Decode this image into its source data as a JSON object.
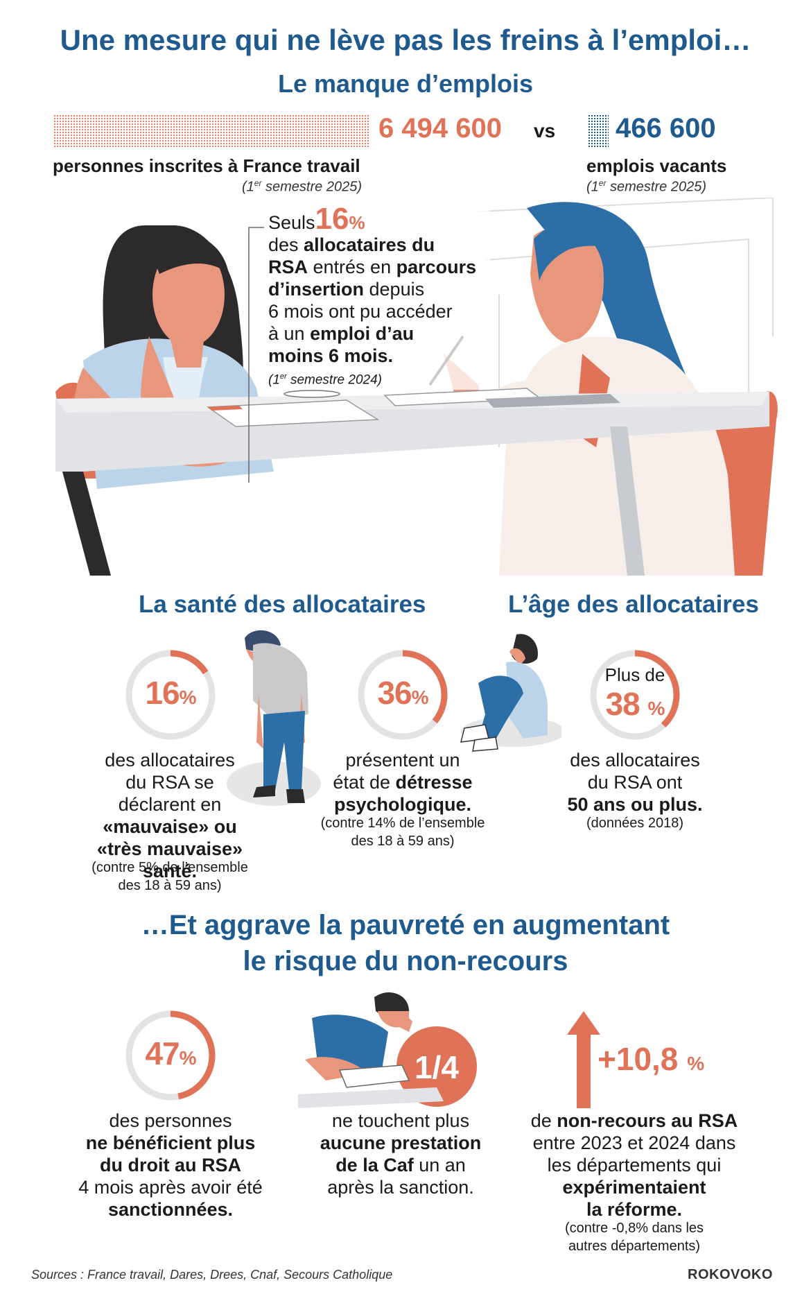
{
  "title": "Une mesure qui ne lève pas les freins à l’emploi…",
  "subtitle_jobs": "Le manque d’emplois",
  "comparison": {
    "left_value": "6 494 600",
    "vs": "vs",
    "right_value": "466 600",
    "left_label": "personnes inscrites à France travail",
    "left_note": [
      "(1",
      "er",
      " semestre 2025)"
    ],
    "right_label": "emplois vacants",
    "right_note": [
      "(1",
      "er",
      " semestre 2025)"
    ]
  },
  "insertion": {
    "lead": "Seuls",
    "value": "16",
    "unit": "%",
    "lines": [
      [
        "des ",
        "allocataires du"
      ],
      [
        "RSA",
        " entrés en ",
        "parcours"
      ],
      [
        "d’insertion",
        " depuis"
      ],
      [
        "6 mois ont pu accéder"
      ],
      [
        "à un ",
        "emploi d’au"
      ],
      [
        "moins 6 mois."
      ]
    ],
    "note": [
      "(1",
      "er",
      " semestre 2024)"
    ]
  },
  "health": {
    "heading": "La santé des allocataires",
    "stat1": {
      "value": "16",
      "unit": "%",
      "ring_fraction": 0.16,
      "lines": [
        "des allocataires",
        "du RSA se",
        "déclarent en",
        "«mauvaise» ou",
        "«très mauvaise» santé."
      ],
      "note": [
        "(contre 5% de l’ensemble",
        "des 18 à 59 ans)"
      ]
    },
    "stat2": {
      "value": "36",
      "unit": "%",
      "ring_fraction": 0.36,
      "lines": [
        "présentent un",
        "état de ",
        "détresse",
        "psychologique."
      ],
      "note": [
        "(contre 14% de l’ensemble",
        "des 18 à 59 ans)"
      ]
    }
  },
  "age": {
    "heading": "L’âge des allocataires",
    "lead": "Plus de",
    "value": "38",
    "unit": "%",
    "ring_fraction": 0.38,
    "lines": [
      "des allocataires",
      "du RSA ont",
      "50 ans ou plus."
    ],
    "note": "(données 2018)"
  },
  "poverty": {
    "heading_line1": "…Et aggrave la pauvreté en augmentant",
    "heading_line2": "le risque du non-recours",
    "stat1": {
      "value": "47",
      "unit": "%",
      "ring_fraction": 0.47,
      "lines": [
        "des personnes",
        "ne bénéficient plus",
        "du droit au RSA",
        "4 mois après avoir été",
        "sanctionnées."
      ]
    },
    "stat2": {
      "value": "1/4",
      "lines": [
        "ne touchent plus",
        "aucune prestation",
        "de la Caf",
        " un an",
        "après la sanction."
      ]
    },
    "stat3": {
      "value": "+10,8",
      "unit": "%",
      "lines": [
        "de ",
        "non-recours au RSA",
        "entre 2023 et 2024 dans",
        "les départements qui",
        "expérimentaient",
        "la réforme."
      ],
      "note": [
        "(contre -0,8% dans les",
        "autres départements)"
      ]
    }
  },
  "sources": "Sources : France travail, Dares, Drees, Cnaf, Secours Catholique",
  "credit": "ROKOVOKO",
  "colors": {
    "blue": "#1e5a8e",
    "accent": "#e07257",
    "ring_bg": "#e3e3e3"
  }
}
